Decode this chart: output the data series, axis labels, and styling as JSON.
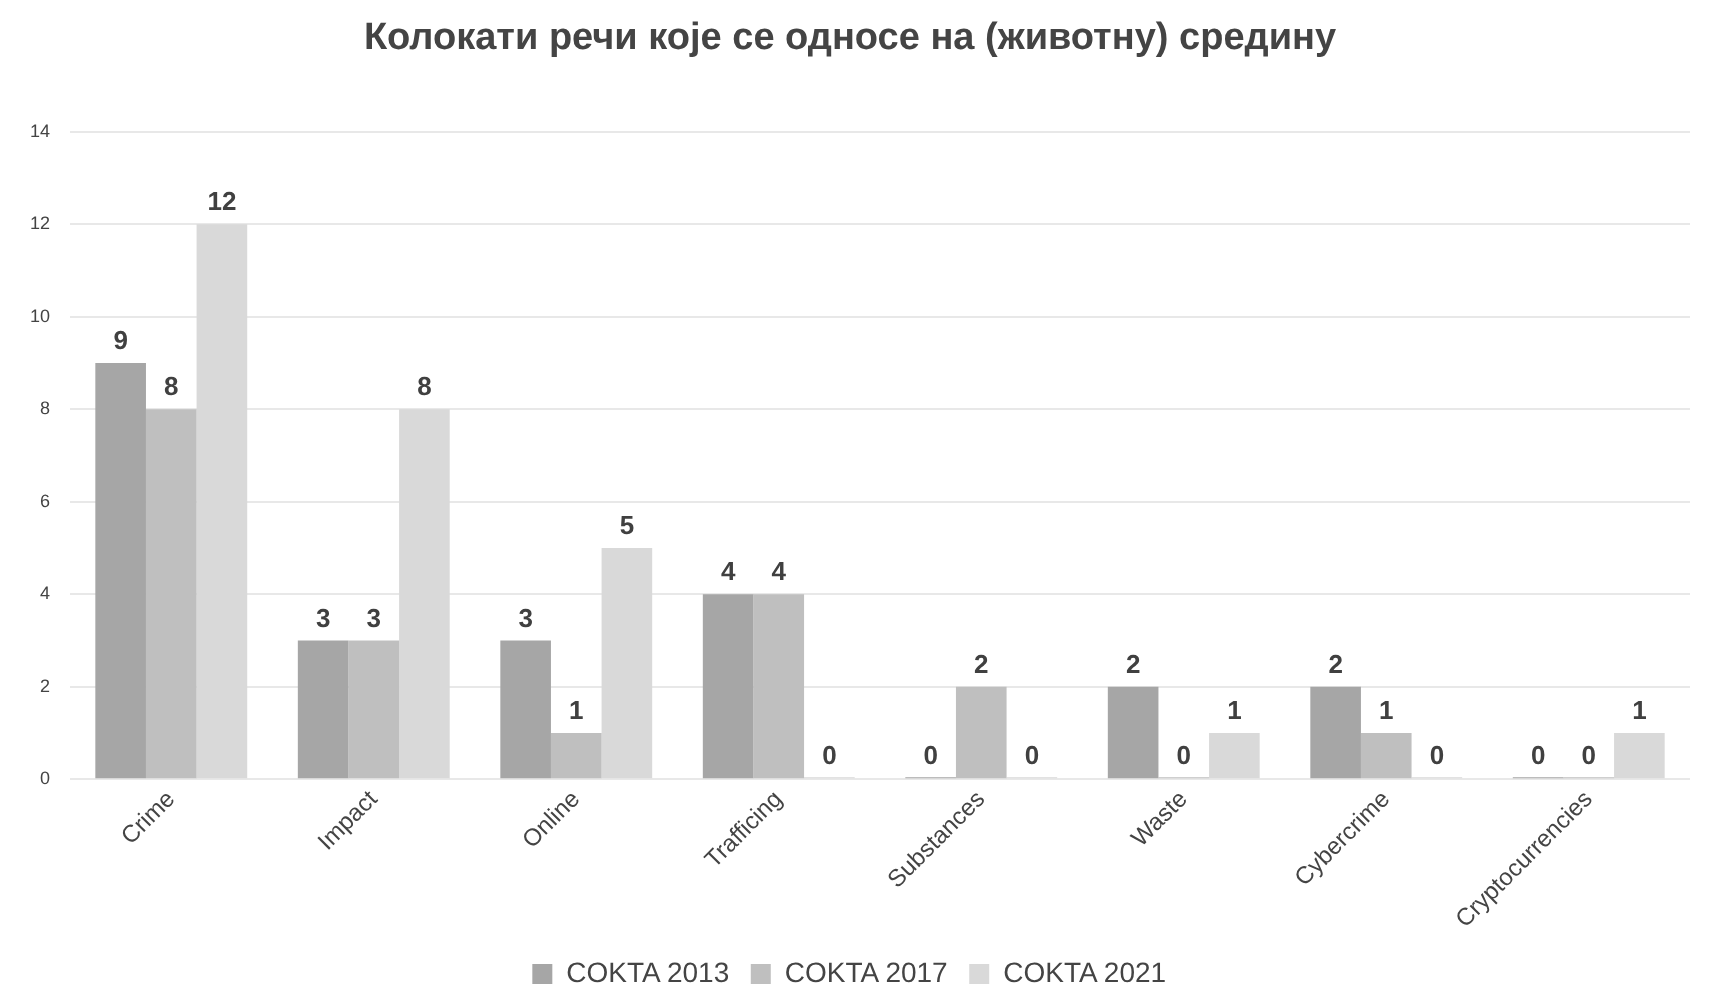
{
  "chart_data": {
    "type": "bar",
    "title": "Колокати речи које се односе на (животну) средину",
    "categories": [
      "Crime",
      "Impact",
      "Online",
      "Trafficing",
      "Substances",
      "Waste",
      "Cybercrime",
      "Cryptocurrencies"
    ],
    "series": [
      {
        "name": "COKTA 2013",
        "color": "#a6a6a6",
        "values": [
          9,
          3,
          3,
          4,
          0,
          2,
          2,
          0
        ]
      },
      {
        "name": "COKTA 2017",
        "color": "#bfbfbf",
        "values": [
          8,
          3,
          1,
          4,
          2,
          0,
          1,
          0
        ]
      },
      {
        "name": "COKTA 2021",
        "color": "#d9d9d9",
        "values": [
          12,
          8,
          5,
          0,
          0,
          1,
          0,
          1
        ]
      }
    ],
    "ylim": [
      0,
      14
    ],
    "yticks": [
      0,
      2,
      4,
      6,
      8,
      10,
      12,
      14
    ],
    "grid": "y",
    "legend": "bottom",
    "data_labels": true
  }
}
